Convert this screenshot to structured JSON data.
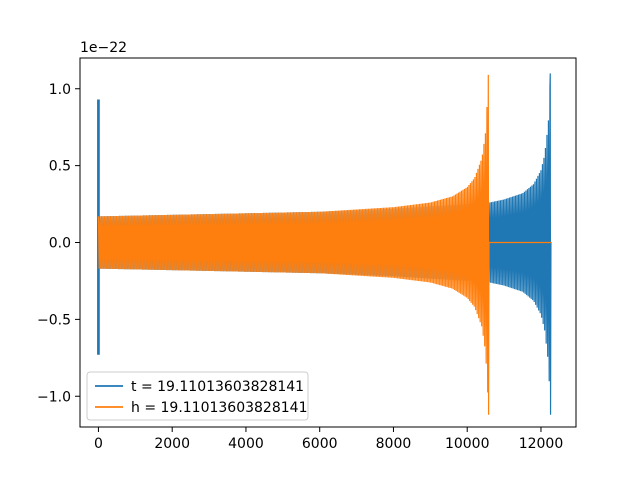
{
  "chart_data": {
    "type": "line",
    "title": "",
    "xlabel": "",
    "ylabel": "",
    "y_offset_label": "1e−22",
    "y_scale_factor": 1e-22,
    "xlim": [
      -500,
      12950
    ],
    "ylim": [
      -1.2,
      1.2
    ],
    "xticks": [
      0,
      2000,
      4000,
      6000,
      8000,
      10000,
      12000
    ],
    "xtick_labels": [
      "0",
      "2000",
      "4000",
      "6000",
      "8000",
      "10000",
      "12000"
    ],
    "yticks": [
      -1.0,
      -0.5,
      0.0,
      0.5,
      1.0
    ],
    "ytick_labels": [
      "−1.0",
      "−0.5",
      "0.0",
      "0.5",
      "1.0"
    ],
    "grid": false,
    "legend_position": "lower-left",
    "series": [
      {
        "name": "t = 19.11013603828141",
        "color": "#1f77b4",
        "description": "zero-padded chirp waveform",
        "spike_at_start": {
          "x": 0,
          "ymax": 0.93,
          "ymin": -0.73
        },
        "start_x": 0,
        "merger_x": 12260,
        "end_x": 12290,
        "envelope": [
          [
            0,
            0.17
          ],
          [
            2000,
            0.18
          ],
          [
            4000,
            0.19
          ],
          [
            6000,
            0.2
          ],
          [
            8000,
            0.22
          ],
          [
            10000,
            0.25
          ],
          [
            10600,
            0.26
          ],
          [
            11000,
            0.28
          ],
          [
            11500,
            0.32
          ],
          [
            11800,
            0.38
          ],
          [
            12000,
            0.47
          ],
          [
            12100,
            0.57
          ],
          [
            12200,
            0.78
          ],
          [
            12260,
            1.1
          ]
        ],
        "merger_min": -1.12,
        "after_merger_value": 0.0
      },
      {
        "name": "h = 19.11013603828141",
        "color": "#ff7f0e",
        "description": "chirp waveform",
        "start_x": 0,
        "merger_x": 10580,
        "end_x": 12290,
        "envelope": [
          [
            0,
            0.17
          ],
          [
            2000,
            0.18
          ],
          [
            4000,
            0.19
          ],
          [
            6000,
            0.2
          ],
          [
            8000,
            0.23
          ],
          [
            9000,
            0.26
          ],
          [
            9600,
            0.3
          ],
          [
            10000,
            0.36
          ],
          [
            10200,
            0.42
          ],
          [
            10400,
            0.55
          ],
          [
            10500,
            0.72
          ],
          [
            10580,
            1.09
          ]
        ],
        "merger_min": -1.12,
        "after_merger_value": 0.0
      }
    ]
  }
}
